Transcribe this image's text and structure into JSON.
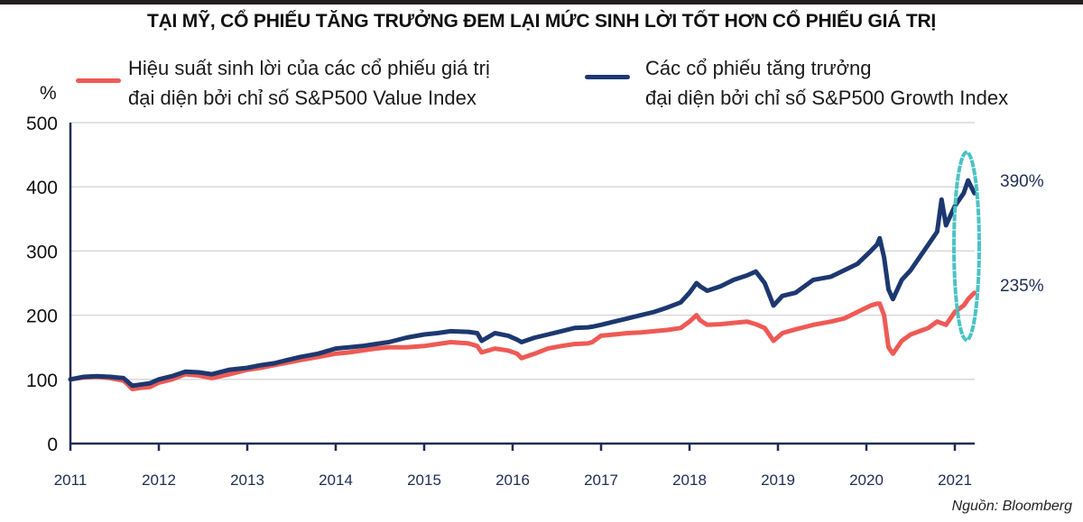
{
  "title": "TẠI MỸ, CỔ PHIẾU TĂNG TRƯỞNG ĐEM LẠI MỨC SINH LỜI TỐT HƠN CỔ PHIẾU GIÁ TRỊ",
  "source": "Nguồn: Bloomberg",
  "colors": {
    "value_series": "#ee5a55",
    "growth_series": "#1d3870",
    "axis": "#1f2d55",
    "grid": "#d9d9d9",
    "highlight": "#4cc2c4"
  },
  "legend": [
    {
      "line1": "Hiệu suất sinh lời của các cổ phiếu giá trị",
      "line2": "đại diện bởi chỉ số S&P500 Value Index"
    },
    {
      "line1": "Các cổ phiếu tăng trưởng",
      "line2": "đại diện bởi chỉ số S&P500 Growth Index"
    }
  ],
  "chart_data": {
    "type": "line",
    "title": "TẠI MỸ, CỔ PHIẾU TĂNG TRƯỞNG ĐEM LẠI MỨC SINH LỜI TỐT HƠN CỔ PHIẾU GIÁ TRỊ",
    "ylabel": "%",
    "xlabel": "",
    "ylim": [
      0,
      500
    ],
    "xlim": [
      2011,
      2021.3
    ],
    "yticks": [
      "0",
      "100",
      "200",
      "300",
      "400",
      "500"
    ],
    "xticks": [
      "2011",
      "2012",
      "2013",
      "2014",
      "2015",
      "2016",
      "2017",
      "2018",
      "2019",
      "2020",
      "2021"
    ],
    "grid": true,
    "legend_position": "top",
    "annotations": [
      {
        "text": "390%",
        "series": "growth"
      },
      {
        "text": "235%",
        "series": "value"
      }
    ],
    "series": [
      {
        "name": "Hiệu suất sinh lời của các cổ phiếu giá trị đại diện bởi chỉ số S&P500 Value Index",
        "key": "value",
        "x": [
          2011.0,
          2011.15,
          2011.3,
          2011.45,
          2011.6,
          2011.65,
          2011.7,
          2011.8,
          2011.9,
          2012.0,
          2012.15,
          2012.3,
          2012.45,
          2012.6,
          2012.8,
          2013.0,
          2013.15,
          2013.3,
          2013.45,
          2013.6,
          2013.8,
          2014.0,
          2014.15,
          2014.3,
          2014.45,
          2014.6,
          2014.8,
          2015.0,
          2015.15,
          2015.3,
          2015.5,
          2015.6,
          2015.65,
          2015.8,
          2015.95,
          2016.05,
          2016.1,
          2016.25,
          2016.4,
          2016.55,
          2016.7,
          2016.85,
          2016.9,
          2017.0,
          2017.15,
          2017.3,
          2017.45,
          2017.6,
          2017.75,
          2017.9,
          2018.0,
          2018.08,
          2018.12,
          2018.2,
          2018.35,
          2018.5,
          2018.65,
          2018.75,
          2018.85,
          2018.95,
          2019.05,
          2019.2,
          2019.4,
          2019.6,
          2019.75,
          2019.9,
          2020.05,
          2020.12,
          2020.15,
          2020.2,
          2020.25,
          2020.3,
          2020.4,
          2020.5,
          2020.6,
          2020.7,
          2020.8,
          2020.9,
          2021.0,
          2021.1,
          2021.15,
          2021.22
        ],
        "values": [
          100,
          103,
          104,
          102,
          98,
          92,
          85,
          87,
          88,
          95,
          100,
          108,
          106,
          102,
          108,
          115,
          118,
          122,
          126,
          130,
          135,
          140,
          142,
          145,
          148,
          150,
          150,
          152,
          155,
          158,
          156,
          152,
          142,
          148,
          145,
          140,
          133,
          140,
          148,
          152,
          155,
          156,
          158,
          168,
          170,
          172,
          173,
          175,
          177,
          180,
          190,
          200,
          192,
          185,
          186,
          188,
          190,
          186,
          180,
          160,
          172,
          178,
          185,
          190,
          195,
          205,
          215,
          218,
          218,
          200,
          150,
          140,
          160,
          170,
          175,
          180,
          190,
          185,
          205,
          215,
          225,
          235
        ]
      },
      {
        "name": "Các cổ phiếu tăng trưởng đại diện bởi chỉ số S&P500 Growth Index",
        "key": "growth",
        "x": [
          2011.0,
          2011.15,
          2011.3,
          2011.45,
          2011.6,
          2011.65,
          2011.7,
          2011.8,
          2011.9,
          2012.0,
          2012.15,
          2012.3,
          2012.45,
          2012.6,
          2012.8,
          2013.0,
          2013.15,
          2013.3,
          2013.45,
          2013.6,
          2013.8,
          2014.0,
          2014.15,
          2014.3,
          2014.45,
          2014.6,
          2014.8,
          2015.0,
          2015.15,
          2015.3,
          2015.5,
          2015.6,
          2015.65,
          2015.8,
          2015.95,
          2016.05,
          2016.1,
          2016.25,
          2016.4,
          2016.55,
          2016.7,
          2016.85,
          2016.9,
          2017.0,
          2017.15,
          2017.3,
          2017.45,
          2017.6,
          2017.75,
          2017.9,
          2018.0,
          2018.08,
          2018.12,
          2018.2,
          2018.35,
          2018.5,
          2018.65,
          2018.75,
          2018.85,
          2018.95,
          2019.05,
          2019.2,
          2019.4,
          2019.6,
          2019.75,
          2019.9,
          2020.05,
          2020.12,
          2020.15,
          2020.2,
          2020.25,
          2020.3,
          2020.4,
          2020.5,
          2020.6,
          2020.7,
          2020.8,
          2020.85,
          2020.9,
          2021.0,
          2021.1,
          2021.15,
          2021.22
        ],
        "values": [
          100,
          104,
          105,
          104,
          102,
          96,
          90,
          92,
          94,
          100,
          105,
          112,
          111,
          108,
          115,
          118,
          122,
          125,
          130,
          135,
          140,
          148,
          150,
          152,
          155,
          158,
          165,
          170,
          172,
          175,
          174,
          172,
          160,
          172,
          168,
          162,
          158,
          165,
          170,
          175,
          180,
          181,
          182,
          185,
          190,
          195,
          200,
          205,
          212,
          220,
          235,
          250,
          245,
          238,
          245,
          255,
          262,
          268,
          250,
          215,
          230,
          235,
          255,
          260,
          270,
          280,
          300,
          310,
          320,
          290,
          240,
          225,
          255,
          270,
          290,
          310,
          330,
          380,
          340,
          370,
          390,
          410,
          390
        ]
      }
    ]
  }
}
